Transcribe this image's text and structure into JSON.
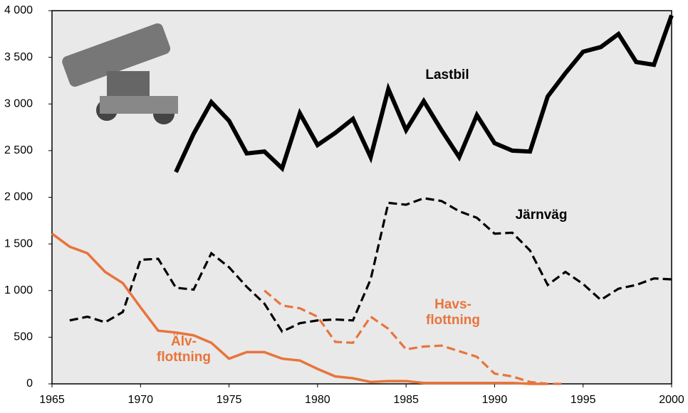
{
  "chart_data": {
    "type": "line",
    "x": [
      1965,
      1966,
      1967,
      1968,
      1969,
      1970,
      1971,
      1972,
      1973,
      1974,
      1975,
      1976,
      1977,
      1978,
      1979,
      1980,
      1981,
      1982,
      1983,
      1984,
      1985,
      1986,
      1987,
      1988,
      1989,
      1990,
      1991,
      1992,
      1993,
      1994,
      1995,
      1996,
      1997,
      1998,
      1999,
      2000
    ],
    "series": [
      {
        "name": "Lastbil",
        "color": "#000000",
        "dash": false,
        "values": [
          null,
          null,
          null,
          null,
          null,
          null,
          null,
          2270,
          2680,
          3020,
          2820,
          2470,
          2490,
          2310,
          2900,
          2560,
          2690,
          2840,
          2430,
          3160,
          2720,
          3030,
          2720,
          2430,
          2880,
          2580,
          2500,
          2490,
          3080,
          3330,
          3560,
          3610,
          3750,
          3450,
          3420,
          3950
        ]
      },
      {
        "name": "Järnväg",
        "color": "#000000",
        "dash": true,
        "values": [
          null,
          680,
          720,
          660,
          770,
          1330,
          1340,
          1030,
          1010,
          1400,
          1250,
          1040,
          860,
          560,
          650,
          680,
          690,
          680,
          1120,
          1940,
          1920,
          1990,
          1960,
          1850,
          1780,
          1610,
          1620,
          1430,
          1060,
          1200,
          1070,
          900,
          1020,
          1060,
          1130,
          1120
        ]
      },
      {
        "name": "Havs-\nflottning",
        "color": "#e8743b",
        "dash": true,
        "values": [
          null,
          null,
          null,
          null,
          null,
          null,
          null,
          null,
          null,
          null,
          null,
          null,
          1000,
          840,
          810,
          720,
          450,
          440,
          720,
          590,
          370,
          400,
          410,
          350,
          290,
          110,
          80,
          20,
          0,
          0,
          null,
          null,
          null,
          null,
          null,
          null
        ]
      },
      {
        "name": "Älv-\nflottning",
        "color": "#e8743b",
        "dash": false,
        "values": [
          1610,
          1470,
          1400,
          1200,
          1080,
          820,
          570,
          550,
          520,
          440,
          270,
          340,
          340,
          270,
          250,
          160,
          80,
          60,
          20,
          30,
          30,
          10,
          10,
          10,
          10,
          10,
          10,
          0,
          0,
          null,
          null,
          null,
          null,
          null,
          null,
          null
        ]
      }
    ],
    "xlim": [
      1965,
      2000
    ],
    "xticks": [
      1965,
      1970,
      1975,
      1980,
      1985,
      1990,
      1995,
      2000
    ],
    "ylim": [
      0,
      4000
    ],
    "yticks": [
      0,
      500,
      {
        "value": 1000,
        "label": "1 000"
      },
      {
        "value": 1500,
        "label": "1 500"
      },
      {
        "value": 2000,
        "label": "2 000"
      },
      {
        "value": 2500,
        "label": "2 500"
      },
      {
        "value": 3000,
        "label": "3 000"
      },
      {
        "value": 3500,
        "label": "3 500"
      },
      {
        "value": 4000,
        "label": "4 000"
      }
    ]
  }
}
